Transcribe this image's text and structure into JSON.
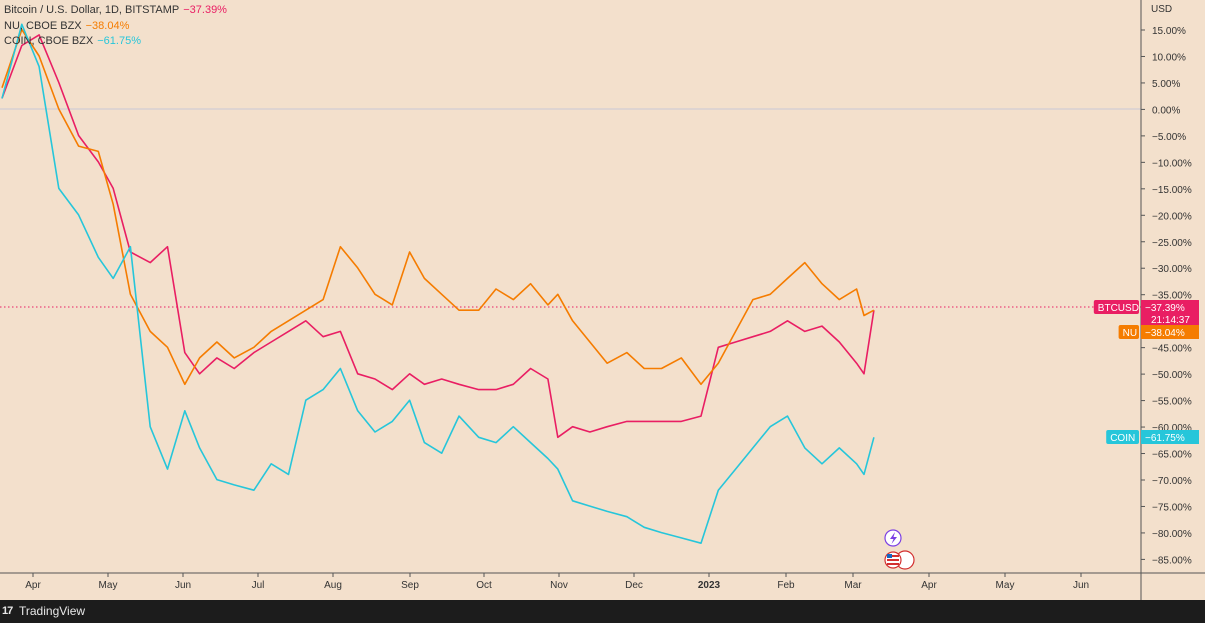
{
  "legend": [
    {
      "name": "Bitcoin / U.S. Dollar, 1D, BITSTAMP",
      "value": "−37.39%",
      "color": "#e91e63"
    },
    {
      "name": "NU, CBOE BZX",
      "value": "−38.04%",
      "color": "#f57c00"
    },
    {
      "name": "COIN, CBOE BZX",
      "value": "−61.75%",
      "color": "#26c6da"
    }
  ],
  "footer": {
    "logo": "17",
    "brand": "TradingView"
  },
  "icons": [
    "lightning-icon",
    "us-flag-icon"
  ],
  "chart_data": {
    "type": "line",
    "ylabel": "USD",
    "y_ticks": [
      "15.00%",
      "10.00%",
      "5.00%",
      "0.00%",
      "−5.00%",
      "−10.00%",
      "−15.00%",
      "−20.00%",
      "−25.00%",
      "−30.00%",
      "−35.00%",
      "−40.00%",
      "−45.00%",
      "−50.00%",
      "−55.00%",
      "−60.00%",
      "−65.00%",
      "−70.00%",
      "−75.00%",
      "−80.00%",
      "−85.00%"
    ],
    "ylim": [
      -87,
      19
    ],
    "x_ticks": [
      "Apr",
      "May",
      "Jun",
      "Jul",
      "Aug",
      "Sep",
      "Oct",
      "Nov",
      "Dec",
      "2023",
      "Feb",
      "Mar",
      "Apr",
      "May",
      "Jun"
    ],
    "zero_line": 0,
    "price_line": {
      "value": -37.39,
      "style": "dotted",
      "color": "#e91e63"
    },
    "price_labels": [
      {
        "name": "BTCUSD",
        "value": "−37.39%",
        "extra": "21:14:37",
        "color": "#e91e63"
      },
      {
        "name": "NU",
        "value": "−38.04%",
        "color": "#f57c00"
      },
      {
        "name": "COIN",
        "value": "−61.75%",
        "color": "#26c6da"
      }
    ],
    "x": [
      "2022-03-28",
      "2022-04-05",
      "2022-04-12",
      "2022-04-20",
      "2022-04-28",
      "2022-05-06",
      "2022-05-12",
      "2022-05-19",
      "2022-05-27",
      "2022-06-03",
      "2022-06-10",
      "2022-06-16",
      "2022-06-23",
      "2022-06-30",
      "2022-07-08",
      "2022-07-15",
      "2022-07-22",
      "2022-07-29",
      "2022-08-05",
      "2022-08-12",
      "2022-08-19",
      "2022-08-26",
      "2022-09-02",
      "2022-09-09",
      "2022-09-15",
      "2022-09-22",
      "2022-09-29",
      "2022-10-07",
      "2022-10-14",
      "2022-10-21",
      "2022-10-28",
      "2022-11-04",
      "2022-11-08",
      "2022-11-14",
      "2022-11-21",
      "2022-11-28",
      "2022-12-06",
      "2022-12-13",
      "2022-12-20",
      "2022-12-28",
      "2023-01-05",
      "2023-01-12",
      "2023-01-19",
      "2023-01-26",
      "2023-02-02",
      "2023-02-09",
      "2023-02-16",
      "2023-02-23",
      "2023-03-02",
      "2023-03-09",
      "2023-03-12",
      "2023-03-16"
    ],
    "series": [
      {
        "name": "BTCUSD",
        "color": "#e91e63",
        "values": [
          2,
          12,
          14,
          5,
          -5,
          -10,
          -15,
          -27,
          -29,
          -26,
          -46,
          -50,
          -47,
          -49,
          -46,
          -44,
          -42,
          -40,
          -43,
          -42,
          -50,
          -51,
          -53,
          -50,
          -52,
          -51,
          -52,
          -53,
          -53,
          -52,
          -49,
          -51,
          -62,
          -60,
          -61,
          -60,
          -59,
          -59,
          -59,
          -59,
          -58,
          -45,
          -44,
          -43,
          -42,
          -40,
          -42,
          -41,
          -44,
          -48,
          -50,
          -38
        ]
      },
      {
        "name": "NU",
        "color": "#f57c00",
        "values": [
          4,
          15,
          10,
          0,
          -7,
          -8,
          -18,
          -35,
          -42,
          -45,
          -52,
          -47,
          -44,
          -47,
          -45,
          -42,
          -40,
          -38,
          -36,
          -26,
          -30,
          -35,
          -37,
          -27,
          -32,
          -35,
          -38,
          -38,
          -34,
          -36,
          -33,
          -37,
          -35,
          -40,
          -44,
          -48,
          -46,
          -49,
          -49,
          -47,
          -52,
          -48,
          -42,
          -36,
          -35,
          -32,
          -29,
          -33,
          -36,
          -34,
          -39,
          -38
        ]
      },
      {
        "name": "COIN",
        "color": "#26c6da",
        "values": [
          2,
          16,
          8,
          -15,
          -20,
          -28,
          -32,
          -26,
          -60,
          -68,
          -57,
          -64,
          -70,
          -71,
          -72,
          -67,
          -69,
          -55,
          -53,
          -49,
          -57,
          -61,
          -59,
          -55,
          -63,
          -65,
          -58,
          -62,
          -63,
          -60,
          -63,
          -66,
          -68,
          -74,
          -75,
          -76,
          -77,
          -79,
          -80,
          -81,
          -82,
          -72,
          -68,
          -64,
          -60,
          -58,
          -64,
          -67,
          -64,
          -67,
          -69,
          -62
        ]
      }
    ]
  }
}
